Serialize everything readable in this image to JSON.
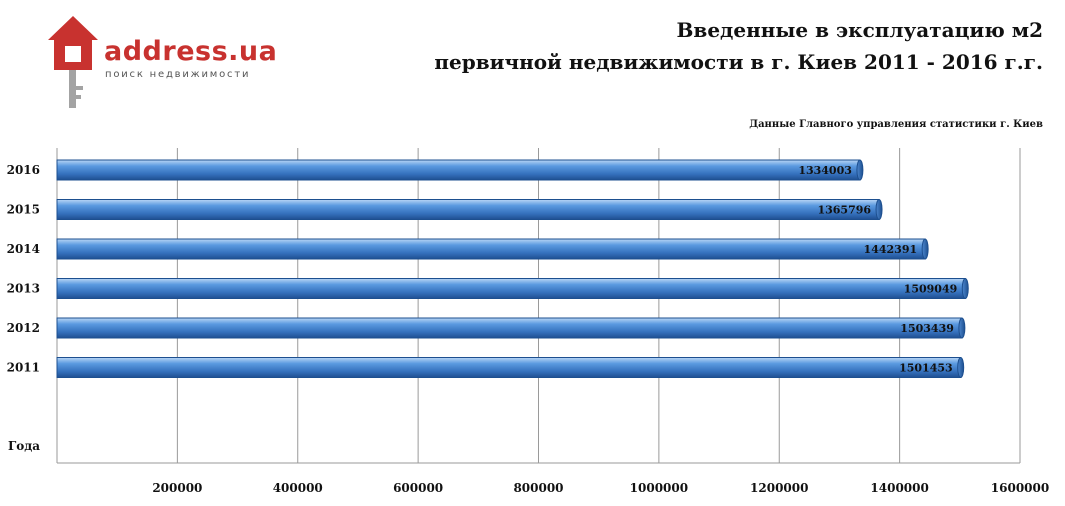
{
  "logo": {
    "name": "address.ua",
    "tagline": "поиск недвижимости",
    "colors": {
      "house": "#c8322f",
      "key": "#9a9a9a"
    }
  },
  "title_lines": [
    "Введенные в эксплуатацию м2",
    "первичной недвижимости в г. Киев 2011 - 2016 г.г."
  ],
  "source_note": "Данные Главного управления статистики г. Киев",
  "chart_data": {
    "type": "bar",
    "orientation": "horizontal",
    "categories": [
      "2016",
      "2015",
      "2014",
      "2013",
      "2012",
      "2011"
    ],
    "values": [
      1334003,
      1365796,
      1442391,
      1509049,
      1503439,
      1501453
    ],
    "data_labels": [
      "1334003",
      "1365796",
      "1442391",
      "1509049",
      "1503439",
      "1501453"
    ],
    "y_axis_title": "Года",
    "x_ticks": [
      "200000",
      "400000",
      "600000",
      "800000",
      "1000000",
      "1200000",
      "1400000",
      "1600000"
    ],
    "x_tick_values": [
      200000,
      400000,
      600000,
      800000,
      1000000,
      1200000,
      1400000,
      1600000
    ],
    "xlim": [
      0,
      1600000
    ],
    "grid": true,
    "legend": "none",
    "bar_color": "#3f7fc9",
    "bar_edge_color": "#1d4f8f"
  }
}
